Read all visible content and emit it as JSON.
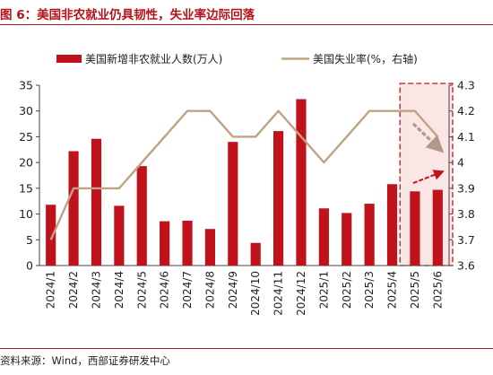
{
  "figure": {
    "title": "图 6：美国非农就业仍具韧性，失业率边际回落",
    "source": "资料来源：Wind，西部证券研发中心"
  },
  "chart_data": {
    "type": "bar+line",
    "categories": [
      "2024/1",
      "2024/2",
      "2024/3",
      "2024/4",
      "2024/5",
      "2024/6",
      "2024/7",
      "2024/8",
      "2024/9",
      "2024/10",
      "2024/11",
      "2024/12",
      "2025/1",
      "2025/2",
      "2025/3",
      "2025/4",
      "2025/5",
      "2025/6"
    ],
    "series": [
      {
        "name": "美国新增非农就业人数(万人)",
        "type": "bar",
        "axis": "left",
        "values": [
          11.8,
          22.2,
          24.6,
          11.6,
          19.3,
          8.6,
          8.7,
          7.1,
          24.0,
          4.4,
          26.1,
          32.3,
          11.1,
          10.2,
          12.0,
          15.8,
          14.4,
          14.7
        ]
      },
      {
        "name": "美国失业率(%，右轴)",
        "type": "line",
        "axis": "right",
        "values": [
          3.7,
          3.9,
          3.9,
          3.9,
          4.0,
          4.1,
          4.2,
          4.2,
          4.1,
          4.1,
          4.2,
          4.1,
          4.0,
          4.1,
          4.2,
          4.2,
          4.2,
          4.1
        ]
      }
    ],
    "y_left": {
      "min": 0,
      "max": 35,
      "ticks": [
        0,
        5,
        10,
        15,
        20,
        25,
        30,
        35
      ]
    },
    "y_right": {
      "min": 3.6,
      "max": 4.3,
      "ticks": [
        "3.6",
        "3.7",
        "3.8",
        "3.9",
        "4",
        "4.1",
        "4.2",
        "4.3"
      ]
    },
    "legend_position": "top",
    "highlight": {
      "from": "2025/5",
      "to": "2025/6",
      "note": "dashed box with arrows"
    },
    "colors": {
      "bar": "#c0121b",
      "line": "#bfa383",
      "accent": "#c0121b",
      "highlight_fill": "#fbe6e6",
      "arrow_gray": "#b09a86"
    }
  }
}
